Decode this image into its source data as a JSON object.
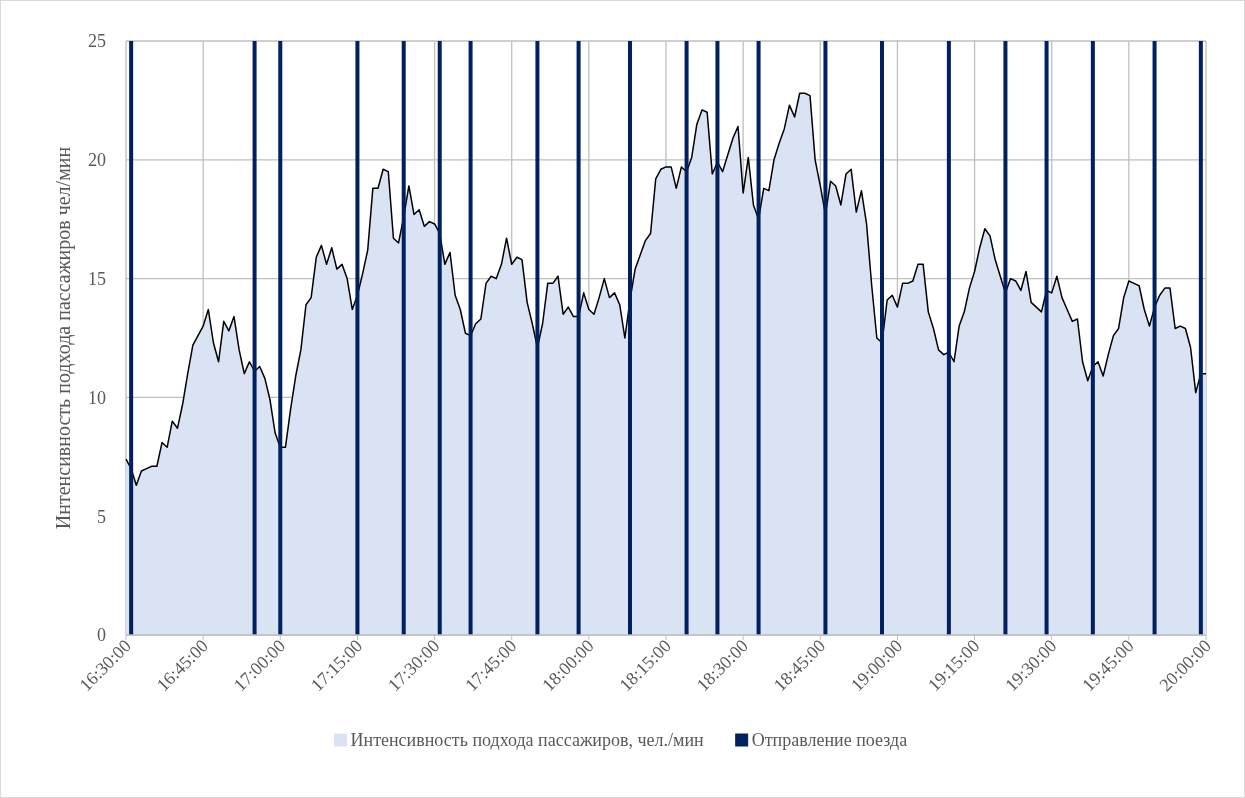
{
  "chart_data": {
    "type": "area",
    "ylabel": "Интенсивность подхода пассажиров чел/мин",
    "x": [
      16.5,
      16.5167,
      16.5333,
      16.55,
      16.5667,
      16.5833,
      16.6,
      16.6167,
      16.6333,
      16.65,
      16.6667,
      16.6833,
      16.7,
      16.7167,
      16.7333,
      16.75,
      16.7667,
      16.7833,
      16.8,
      16.8167,
      16.8333,
      16.85,
      16.8667,
      16.8833,
      16.9,
      16.9167,
      16.9333,
      16.95,
      16.9667,
      16.9833,
      17.0,
      17.0167,
      17.0333,
      17.05,
      17.0667,
      17.0833,
      17.1,
      17.1167,
      17.1333,
      17.15,
      17.1667,
      17.1833,
      17.2,
      17.2167,
      17.2333,
      17.25,
      17.2667,
      17.2833,
      17.3,
      17.3167,
      17.3333,
      17.35,
      17.3667,
      17.3833,
      17.4,
      17.4167,
      17.4333,
      17.45,
      17.4667,
      17.4833,
      17.5,
      17.5167,
      17.5333,
      17.55,
      17.5667,
      17.5833,
      17.6,
      17.6167,
      17.6333,
      17.65,
      17.6667,
      17.6833,
      17.7,
      17.7167,
      17.7333,
      17.75,
      17.7667,
      17.7833,
      17.8,
      17.8167,
      17.8333,
      17.85,
      17.8667,
      17.8833,
      17.9,
      17.9167,
      17.9333,
      17.95,
      17.9667,
      17.9833,
      18.0,
      18.0167,
      18.0333,
      18.05,
      18.0667,
      18.0833,
      18.1,
      18.1167,
      18.1333,
      18.15,
      18.1667,
      18.1833,
      18.2,
      18.2167,
      18.2333,
      18.25,
      18.2667,
      18.2833,
      18.3,
      18.3167,
      18.3333,
      18.35,
      18.3667,
      18.3833,
      18.4,
      18.4167,
      18.4333,
      18.45,
      18.4667,
      18.4833,
      18.5,
      18.5167,
      18.5333,
      18.55,
      18.5667,
      18.5833,
      18.6,
      18.6167,
      18.6333,
      18.65,
      18.6667,
      18.6833,
      18.7,
      18.7167,
      18.7333,
      18.75,
      18.7667,
      18.7833,
      18.8,
      18.8167,
      18.8333,
      18.85,
      18.8667,
      18.8833,
      18.9,
      18.9167,
      18.9333,
      18.95,
      18.9667,
      18.9833,
      19.0,
      19.0167,
      19.0333,
      19.05,
      19.0667,
      19.0833,
      19.1,
      19.1167,
      19.1333,
      19.15,
      19.1667,
      19.1833,
      19.2,
      19.2167,
      19.2333,
      19.25,
      19.2667,
      19.2833,
      19.3,
      19.3167,
      19.3333,
      19.35,
      19.3667,
      19.3833,
      19.4,
      19.4167,
      19.4333,
      19.45,
      19.4667,
      19.4833,
      19.5,
      19.5167,
      19.5333,
      19.55,
      19.5667,
      19.5833,
      19.6,
      19.6167,
      19.6333,
      19.65,
      19.6667,
      19.6833,
      19.7,
      19.7167,
      19.7333,
      19.75,
      19.7667,
      19.7833,
      19.8,
      19.8167,
      19.8333,
      19.85,
      19.8667,
      19.8833,
      19.9,
      19.9167,
      19.9333,
      19.95,
      19.9667,
      19.9833,
      20.0
    ],
    "series": [
      {
        "name": "Интенсивность подхода пассажиров, чел./мин",
        "color": "#dae3f3",
        "values": [
          7.4,
          7.0,
          6.3,
          6.9,
          7.0,
          7.1,
          7.1,
          8.1,
          7.9,
          9.0,
          8.7,
          9.7,
          11.0,
          12.2,
          12.6,
          13.0,
          13.7,
          12.3,
          11.5,
          13.2,
          12.8,
          13.4,
          12.0,
          11.0,
          11.5,
          11.1,
          11.3,
          10.8,
          9.9,
          8.5,
          7.9,
          7.9,
          9.5,
          10.9,
          12.0,
          13.9,
          14.2,
          15.9,
          16.4,
          15.6,
          16.3,
          15.4,
          15.6,
          15.0,
          13.7,
          14.3,
          15.2,
          16.2,
          18.8,
          18.8,
          19.6,
          19.5,
          16.7,
          16.5,
          17.6,
          18.9,
          17.7,
          17.9,
          17.2,
          17.4,
          17.3,
          16.9,
          15.6,
          16.1,
          14.3,
          13.7,
          12.7,
          12.6,
          13.1,
          13.3,
          14.8,
          15.1,
          15.0,
          15.6,
          16.7,
          15.6,
          15.9,
          15.8,
          14.0,
          13.1,
          12.1,
          13.1,
          14.8,
          14.8,
          15.1,
          13.5,
          13.8,
          13.4,
          13.4,
          14.4,
          13.7,
          13.5,
          14.2,
          15.0,
          14.2,
          14.4,
          13.9,
          12.5,
          14.1,
          15.4,
          16.0,
          16.6,
          16.9,
          19.2,
          19.6,
          19.7,
          19.7,
          18.8,
          19.7,
          19.5,
          20.1,
          21.5,
          22.1,
          22.0,
          19.4,
          19.9,
          19.5,
          20.2,
          20.9,
          21.4,
          18.6,
          20.1,
          18.1,
          17.5,
          18.8,
          18.7,
          20.0,
          20.7,
          21.3,
          22.3,
          21.8,
          22.8,
          22.8,
          22.7,
          20.0,
          18.9,
          17.7,
          19.1,
          18.9,
          18.1,
          19.4,
          19.6,
          17.8,
          18.7,
          17.3,
          14.7,
          12.5,
          12.3,
          14.1,
          14.3,
          13.8,
          14.8,
          14.8,
          14.9,
          15.6,
          15.6,
          13.6,
          12.9,
          12.0,
          11.8,
          11.9,
          11.5,
          13.0,
          13.6,
          14.6,
          15.3,
          16.3,
          17.1,
          16.8,
          15.8,
          15.1,
          14.4,
          15.0,
          14.9,
          14.5,
          15.3,
          14.0,
          13.8,
          13.6,
          14.5,
          14.4,
          15.1,
          14.2,
          13.7,
          13.2,
          13.3,
          11.5,
          10.7,
          11.3,
          11.5,
          10.9,
          11.8,
          12.6,
          12.9,
          14.2,
          14.9,
          14.8,
          14.7,
          13.7,
          13.0,
          13.8,
          14.3,
          14.6,
          14.6,
          12.9,
          13.0,
          12.9,
          12.1,
          10.2,
          11.0,
          11.0
        ]
      },
      {
        "name": "Отправление поезда",
        "type": "bar",
        "color": "#002060",
        "x": [
          16.5167,
          16.9167,
          17.0,
          17.25,
          17.4,
          17.5167,
          17.6167,
          17.8333,
          17.9667,
          18.1333,
          18.3167,
          18.4167,
          18.55,
          18.7667,
          18.95,
          19.1667,
          19.35,
          19.4833,
          19.6333,
          19.8333,
          19.9833
        ],
        "values": [
          25,
          25,
          25,
          25,
          25,
          25,
          25,
          25,
          25,
          25,
          25,
          25,
          25,
          25,
          25,
          25,
          25,
          25,
          25,
          25,
          25
        ]
      }
    ],
    "xlim": [
      16.5,
      20.0
    ],
    "xticks": [
      {
        "value": 16.5,
        "label": "16:30:00"
      },
      {
        "value": 16.75,
        "label": "16:45:00"
      },
      {
        "value": 17.0,
        "label": "17:00:00"
      },
      {
        "value": 17.25,
        "label": "17:15:00"
      },
      {
        "value": 17.5,
        "label": "17:30:00"
      },
      {
        "value": 17.75,
        "label": "17:45:00"
      },
      {
        "value": 18.0,
        "label": "18:00:00"
      },
      {
        "value": 18.25,
        "label": "18:15:00"
      },
      {
        "value": 18.5,
        "label": "18:30:00"
      },
      {
        "value": 18.75,
        "label": "18:45:00"
      },
      {
        "value": 19.0,
        "label": "19:00:00"
      },
      {
        "value": 19.25,
        "label": "19:15:00"
      },
      {
        "value": 19.5,
        "label": "19:30:00"
      },
      {
        "value": 19.75,
        "label": "19:45:00"
      },
      {
        "value": 20.0,
        "label": "20:00:00"
      }
    ],
    "ylim": [
      0,
      25
    ],
    "yticks": [
      0,
      5,
      10,
      15,
      20,
      25
    ],
    "grid": true,
    "legend": "bottom"
  }
}
